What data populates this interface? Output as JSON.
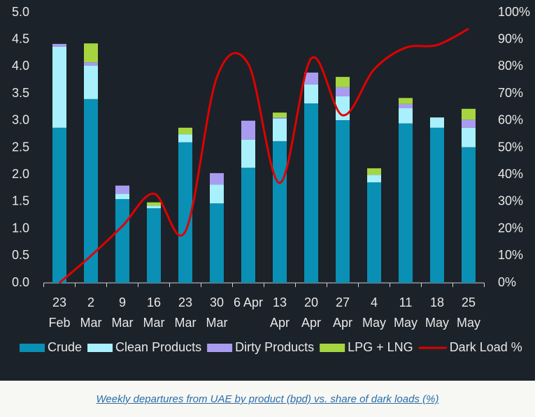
{
  "chart_data": {
    "type": "bar",
    "stacked": true,
    "categories": [
      [
        "23",
        "Feb"
      ],
      [
        "2",
        "Mar"
      ],
      [
        "9",
        "Mar"
      ],
      [
        "16",
        "Mar"
      ],
      [
        "23",
        "Mar"
      ],
      [
        "30",
        "Mar"
      ],
      [
        "6 Apr"
      ],
      [
        "13",
        "Apr"
      ],
      [
        "20",
        "Apr"
      ],
      [
        "27",
        "Apr"
      ],
      [
        "4",
        "May"
      ],
      [
        "11",
        "May"
      ],
      [
        "18",
        "May"
      ],
      [
        "25",
        "May"
      ]
    ],
    "series": [
      {
        "name": "Crude",
        "color": "#0a8fb5",
        "values": [
          2.87,
          3.4,
          1.55,
          1.38,
          2.6,
          1.47,
          2.13,
          2.62,
          3.32,
          3.01,
          1.86,
          2.95,
          2.87,
          2.51
        ]
      },
      {
        "name": "Clean Products",
        "color": "#a8f0fb",
        "values": [
          1.5,
          0.62,
          0.1,
          0.05,
          0.15,
          0.35,
          0.52,
          0.42,
          0.35,
          0.44,
          0.14,
          0.28,
          0.19,
          0.36
        ]
      },
      {
        "name": "Dirty Products",
        "color": "#a99cf0",
        "values": [
          0.05,
          0.06,
          0.15,
          0,
          0,
          0.21,
          0.35,
          0.02,
          0.22,
          0.17,
          0,
          0.08,
          0,
          0.15
        ]
      },
      {
        "name": "LPG + LNG",
        "color": "#a5d63f",
        "values": [
          0,
          0.35,
          0,
          0.06,
          0.12,
          0,
          0,
          0.09,
          0,
          0.19,
          0.12,
          0.11,
          0,
          0.2
        ]
      },
      {
        "name": "Dark Load %",
        "color": "#e00000",
        "type": "line",
        "axis": "y2",
        "values": [
          0,
          10,
          21,
          33,
          19,
          76,
          81,
          37,
          83,
          62,
          79,
          87,
          88,
          94
        ]
      }
    ],
    "ylim": [
      0,
      5
    ],
    "yticks": [
      {
        "value": 0,
        "label": "0.0"
      },
      0.5,
      {
        "value": 1,
        "label": "1.0"
      },
      1.5,
      {
        "value": 2,
        "label": "2.0"
      },
      2.5,
      {
        "value": 3,
        "label": "3.0"
      },
      3.5,
      {
        "value": 4,
        "label": "4.0"
      },
      4.5,
      {
        "value": 5,
        "label": "5.0"
      }
    ],
    "y2lim": [
      0,
      100
    ],
    "y2ticks": [
      {
        "value": 0,
        "label": "0%"
      },
      {
        "value": 10,
        "label": "10%"
      },
      {
        "value": 20,
        "label": "20%"
      },
      {
        "value": 30,
        "label": "30%"
      },
      {
        "value": 40,
        "label": "40%"
      },
      {
        "value": 50,
        "label": "50%"
      },
      {
        "value": 60,
        "label": "60%"
      },
      {
        "value": 70,
        "label": "70%"
      },
      {
        "value": 80,
        "label": "80%"
      },
      {
        "value": 90,
        "label": "90%"
      },
      {
        "value": 100,
        "label": "100%"
      }
    ],
    "caption": "Weekly departures from UAE by product (bpd) vs. share of dark loads (%)"
  }
}
